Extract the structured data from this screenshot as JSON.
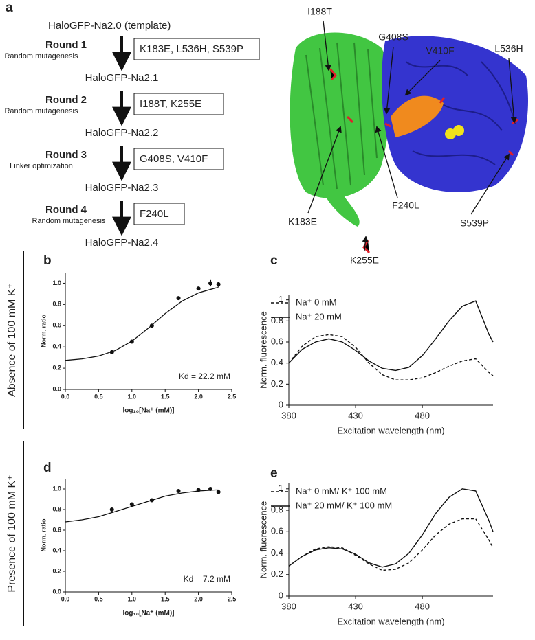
{
  "panel_a": {
    "panel": "a",
    "start": "HaloGFP-Na2.0 (template)",
    "steps": [
      {
        "round": "Round 1",
        "method": "Random mutagenesis",
        "mutations": "K183E, L536H, S539P",
        "result": "HaloGFP-Na2.1"
      },
      {
        "round": "Round 2",
        "method": "Random mutagenesis",
        "mutations": "I188T, K255E",
        "result": "HaloGFP-Na2.2"
      },
      {
        "round": "Round 3",
        "method": "Linker optimization",
        "mutations": "G408S, V410F",
        "result": "HaloGFP-Na2.3"
      },
      {
        "round": "Round 4",
        "method": "Random mutagenesis",
        "mutations": "F240L",
        "result": "HaloGFP-Na2.4"
      }
    ],
    "structure_labels": [
      "I188T",
      "G408S",
      "V410F",
      "L536H",
      "K183E",
      "F240L",
      "S539P",
      "K255E"
    ]
  },
  "side_labels": [
    "Absence of 100 mM K⁺",
    "Presence of 100 mM K⁺"
  ],
  "chart_data": [
    {
      "type": "scatter",
      "panel": "b",
      "ylabel": "Norm. ratio",
      "xlabel": "log₁₀[Na⁺ (mM)]",
      "annotation": "Kd = 22.2 mM",
      "xlim": [
        0,
        2.5
      ],
      "ylim": [
        0,
        1.1
      ],
      "xticks": [
        {
          "value": 0,
          "label": "0.0"
        },
        0.5,
        {
          "value": 1,
          "label": "1.0"
        },
        1.5,
        {
          "value": 2,
          "label": "2.0"
        },
        2.5
      ],
      "yticks": [
        {
          "value": 0,
          "label": "0.0"
        },
        0.2,
        0.4,
        0.6,
        0.8,
        {
          "value": 1,
          "label": "1.0"
        }
      ],
      "color": "#111",
      "points": {
        "x": [
          0.7,
          1.0,
          1.3,
          1.7,
          2.0,
          2.18,
          2.3
        ],
        "values": [
          0.35,
          0.45,
          0.6,
          0.86,
          0.95,
          1.0,
          0.99
        ],
        "errors": [
          0.005,
          0.005,
          0.005,
          0.01,
          0.01,
          0.03,
          0.025
        ]
      },
      "fit": {
        "x": [
          0,
          0.25,
          0.5,
          0.75,
          1.0,
          1.25,
          1.5,
          1.75,
          2.0,
          2.25,
          2.3
        ],
        "values": [
          0.273,
          0.287,
          0.314,
          0.366,
          0.454,
          0.578,
          0.714,
          0.83,
          0.909,
          0.954,
          0.96
        ]
      }
    },
    {
      "type": "line",
      "panel": "c",
      "ylabel": "Norm. fluorescence",
      "xlabel": "Excitation wavelength (nm)",
      "legend": "upper left",
      "xlim": [
        380,
        533
      ],
      "ylim": [
        0,
        1.05
      ],
      "xticks": [
        380,
        430,
        480
      ],
      "yticks": [
        0,
        0.2,
        0.4,
        0.6,
        0.8,
        1
      ],
      "x": [
        380,
        390,
        400,
        410,
        420,
        430,
        440,
        450,
        460,
        470,
        480,
        490,
        500,
        510,
        520,
        530,
        533
      ],
      "series": [
        {
          "name": "Na⁺ 0 mM",
          "color": "#111",
          "dashed": true,
          "values": [
            0.4,
            0.56,
            0.65,
            0.67,
            0.65,
            0.55,
            0.4,
            0.29,
            0.24,
            0.24,
            0.26,
            0.31,
            0.37,
            0.42,
            0.44,
            0.31,
            0.28
          ]
        },
        {
          "name": "Na⁺ 20 mM",
          "color": "#111",
          "dashed": false,
          "values": [
            0.4,
            0.53,
            0.6,
            0.63,
            0.6,
            0.52,
            0.42,
            0.35,
            0.33,
            0.36,
            0.47,
            0.63,
            0.8,
            0.94,
            0.99,
            0.67,
            0.6
          ]
        }
      ]
    },
    {
      "type": "scatter",
      "panel": "d",
      "ylabel": "Norm. ratio",
      "xlabel": "log₁₀[Na⁺ (mM)]",
      "annotation": "Kd = 7.2 mM",
      "xlim": [
        0,
        2.5
      ],
      "ylim": [
        0,
        1.1
      ],
      "xticks": [
        {
          "value": 0,
          "label": "0.0"
        },
        0.5,
        {
          "value": 1,
          "label": "1.0"
        },
        1.5,
        {
          "value": 2,
          "label": "2.0"
        },
        2.5
      ],
      "yticks": [
        {
          "value": 0,
          "label": "0.0"
        },
        0.2,
        0.4,
        0.6,
        0.8,
        {
          "value": 1,
          "label": "1.0"
        }
      ],
      "color": "#111",
      "points": {
        "x": [
          0.7,
          1.0,
          1.3,
          1.7,
          2.0,
          2.18,
          2.3
        ],
        "values": [
          0.8,
          0.85,
          0.89,
          0.98,
          0.99,
          1.0,
          0.97
        ],
        "errors": [
          0.005,
          0.005,
          0.005,
          0.005,
          0.005,
          0.01,
          0.01
        ]
      },
      "fit": {
        "x": [
          0,
          0.25,
          0.5,
          0.75,
          1.0,
          1.25,
          1.5,
          1.75,
          2.0,
          2.25,
          2.3
        ],
        "values": [
          0.68,
          0.7,
          0.73,
          0.78,
          0.83,
          0.88,
          0.93,
          0.96,
          0.98,
          0.99,
          0.99
        ]
      }
    },
    {
      "type": "line",
      "panel": "e",
      "ylabel": "Norm. fluorescence",
      "xlabel": "Excitation wavelength (nm)",
      "legend": "upper left",
      "xlim": [
        380,
        533
      ],
      "ylim": [
        0,
        1.05
      ],
      "xticks": [
        380,
        430,
        480
      ],
      "yticks": [
        0,
        0.2,
        0.4,
        0.6,
        0.8,
        1
      ],
      "x": [
        380,
        390,
        400,
        410,
        420,
        430,
        440,
        450,
        460,
        470,
        480,
        490,
        500,
        510,
        520,
        530,
        533
      ],
      "series": [
        {
          "name": "Na⁺ 0 mM/ K⁺ 100 mM",
          "color": "#111",
          "dashed": true,
          "values": [
            0.28,
            0.37,
            0.44,
            0.46,
            0.45,
            0.38,
            0.3,
            0.24,
            0.25,
            0.31,
            0.43,
            0.57,
            0.67,
            0.72,
            0.72,
            0.52,
            0.45
          ]
        },
        {
          "name": "Na⁺ 20 mM/ K⁺ 100 mM",
          "color": "#111",
          "dashed": false,
          "values": [
            0.28,
            0.37,
            0.43,
            0.45,
            0.44,
            0.39,
            0.31,
            0.27,
            0.3,
            0.4,
            0.57,
            0.77,
            0.92,
            1.0,
            0.98,
            0.7,
            0.6
          ]
        }
      ]
    }
  ]
}
